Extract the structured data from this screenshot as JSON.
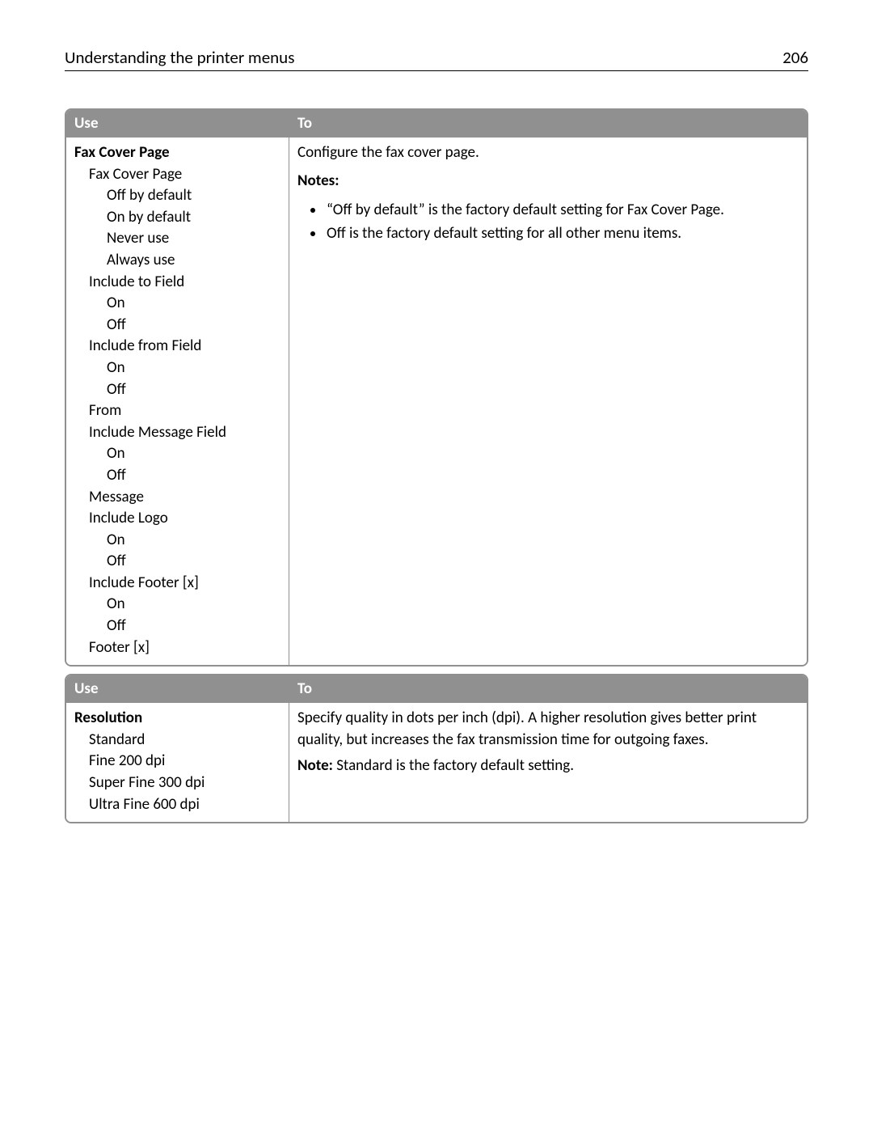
{
  "header": {
    "title": "Understanding the printer menus",
    "page_number": "206"
  },
  "colors": {
    "header_bg": "#909090",
    "header_text": "#ffffff",
    "border": "#909090",
    "body_bg": "#ffffff",
    "text": "#000000"
  },
  "tables": [
    {
      "columns": {
        "use": "Use",
        "to": "To"
      },
      "use": {
        "title": "Fax Cover Page",
        "tree": [
          {
            "label": "Fax Cover Page",
            "level": 1
          },
          {
            "label": "Off by default",
            "level": 2
          },
          {
            "label": "On by default",
            "level": 2
          },
          {
            "label": "Never use",
            "level": 2
          },
          {
            "label": "Always use",
            "level": 2
          },
          {
            "label": "Include to Field",
            "level": 1
          },
          {
            "label": "On",
            "level": 2
          },
          {
            "label": "Off",
            "level": 2
          },
          {
            "label": "Include from Field",
            "level": 1
          },
          {
            "label": "On",
            "level": 2
          },
          {
            "label": "Off",
            "level": 2
          },
          {
            "label": "From",
            "level": 1
          },
          {
            "label": "Include Message Field",
            "level": 1
          },
          {
            "label": "On",
            "level": 2
          },
          {
            "label": "Off",
            "level": 2
          },
          {
            "label": "Message",
            "level": 1
          },
          {
            "label": "Include Logo",
            "level": 1
          },
          {
            "label": "On",
            "level": 2
          },
          {
            "label": "Off",
            "level": 2
          },
          {
            "label": "Include Footer [x]",
            "level": 1
          },
          {
            "label": "On",
            "level": 2
          },
          {
            "label": "Off",
            "level": 2
          },
          {
            "label": "Footer [x]",
            "level": 1
          }
        ]
      },
      "to": {
        "description": "Configure the fax cover page.",
        "notes_label": "Notes:",
        "notes": [
          "“Off by default” is the factory default setting for Fax Cover Page.",
          "Off is the factory default setting for all other menu items."
        ]
      }
    },
    {
      "columns": {
        "use": "Use",
        "to": "To"
      },
      "use": {
        "title": "Resolution",
        "tree": [
          {
            "label": "Standard",
            "level": 1
          },
          {
            "label": "Fine 200 dpi",
            "level": 1
          },
          {
            "label": "Super Fine 300 dpi",
            "level": 1
          },
          {
            "label": "Ultra Fine 600 dpi",
            "level": 1
          }
        ]
      },
      "to": {
        "description": "Specify quality in dots per inch (dpi). A higher resolution gives better print quality, but increases the fax transmission time for outgoing faxes.",
        "note_label": "Note:",
        "note_text": " Standard is the factory default setting."
      }
    }
  ]
}
